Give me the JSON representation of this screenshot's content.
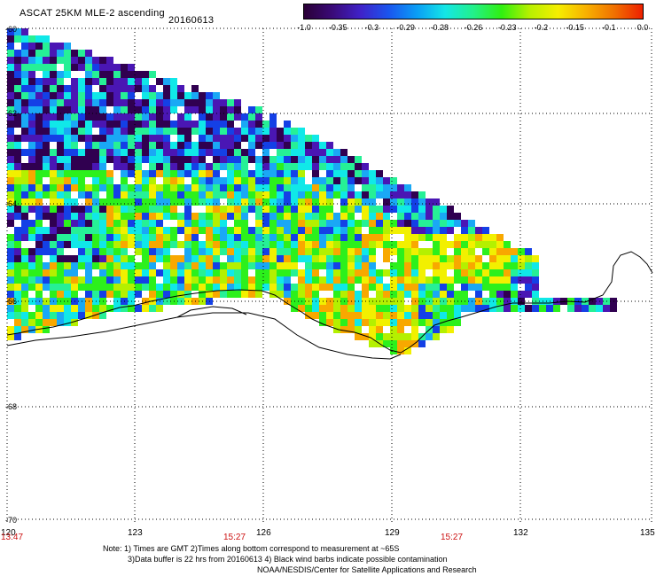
{
  "header": {
    "title": "ASCAT 25KM MLE-2 ascending",
    "date": "20160613"
  },
  "colorbar": {
    "labels": [
      "-1.0",
      "-0.35",
      "-0.3",
      "-0.29",
      "-0.28",
      "-0.26",
      "-0.23",
      "-0.2",
      "-0.15",
      "-0.1",
      "0.0"
    ],
    "colors": [
      "#2a0036",
      "#3a0a78",
      "#3f22c8",
      "#1a55ee",
      "#0a9ef5",
      "#14e6e6",
      "#22f08a",
      "#30f010",
      "#b8f000",
      "#f5ee00",
      "#f8b000",
      "#f07000",
      "#ee2000"
    ]
  },
  "map": {
    "lat_labels": [
      "-60",
      "-62",
      "-64",
      "-66",
      "-68",
      "-70"
    ],
    "lon_labels": [
      "120",
      "123",
      "126",
      "129",
      "132",
      "135"
    ],
    "time_labels": [
      "13:47",
      "15:27",
      "15:27"
    ],
    "colors": {
      "dark_purple": "#300050",
      "purple": "#4a16b4",
      "blue": "#1440e6",
      "light_blue": "#1aa8f5",
      "cyan": "#10e8e8",
      "sea_green": "#26f096",
      "green": "#2cf01c",
      "yellow_green": "#b4f000",
      "yellow": "#f2f000",
      "orange": "#f8a800",
      "coast": "#000000",
      "grid": "#000000"
    }
  },
  "notes": {
    "line1": "Note: 1) Times are GMT 2)Times along bottom correspond to measurement at ~65S",
    "line2": "3)Data buffer is 22 hrs from 20160613 4) Black wind barbs indicate possible contamination",
    "line3": "NOAA/NESDIS/Center for Satellite Applications and Research"
  }
}
